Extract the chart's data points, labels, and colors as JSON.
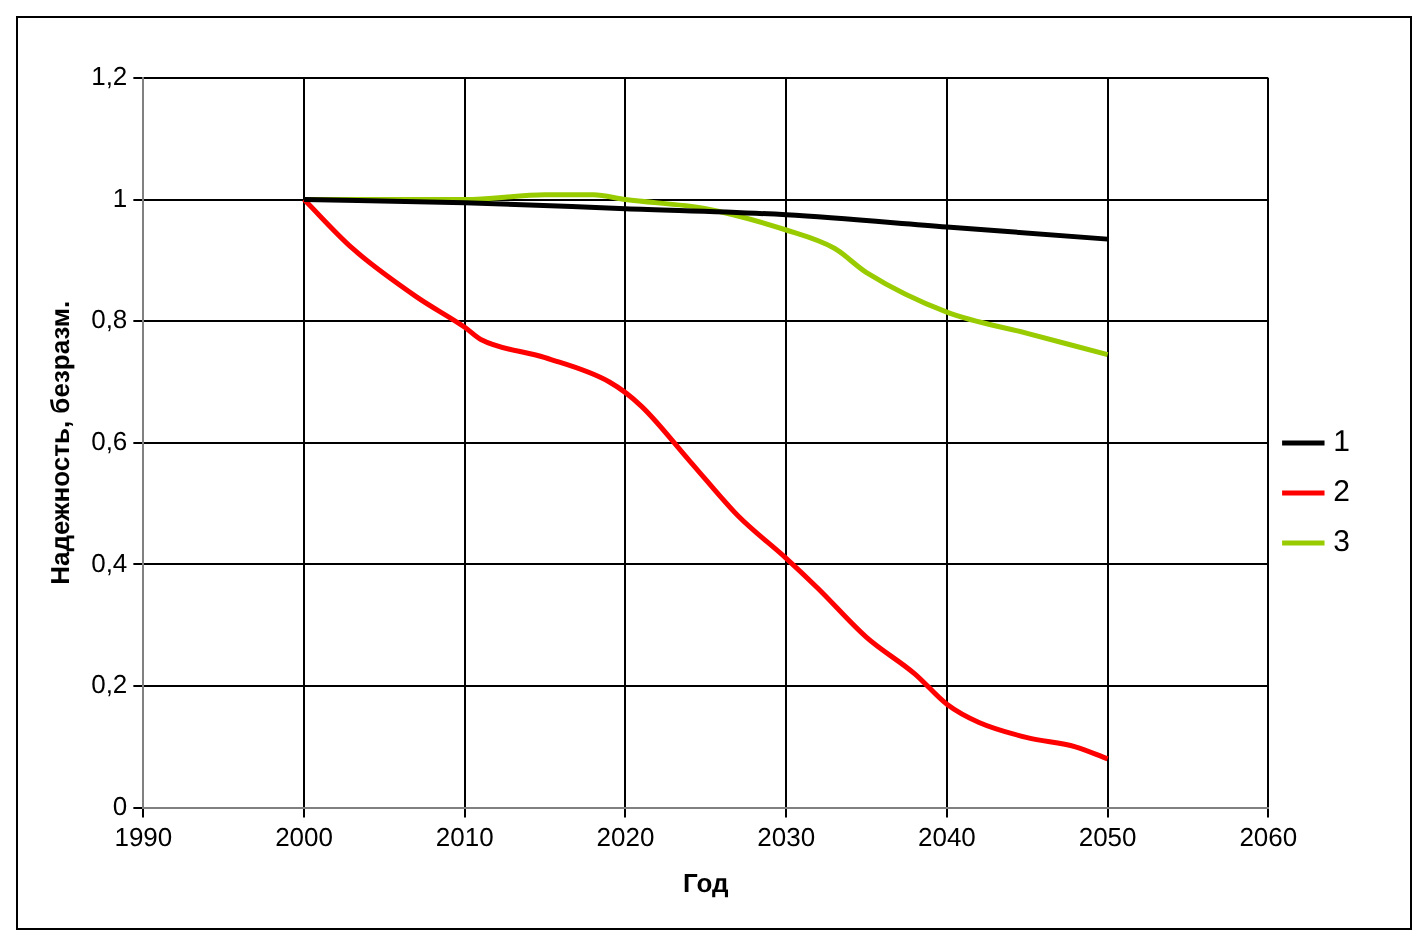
{
  "chart_data": {
    "type": "line",
    "xlabel": "Год",
    "ylabel": "Надежность, безразм.",
    "xlim": [
      1990,
      2060
    ],
    "xticks": [
      1990,
      2000,
      2010,
      2020,
      2030,
      2040,
      2050,
      2060
    ],
    "ylim": [
      0,
      1.2
    ],
    "yticks": [
      0,
      {
        "value": 0.2,
        "label": "0,2"
      },
      {
        "value": 0.4,
        "label": "0,4"
      },
      {
        "value": 0.6,
        "label": "0,6"
      },
      {
        "value": 0.8,
        "label": "0,8"
      },
      1,
      {
        "value": 1.2,
        "label": "1,2"
      }
    ],
    "grid": true,
    "legend": "right",
    "marker": "none",
    "line_style": "solid",
    "series": [
      {
        "name": "1",
        "color": "#000000",
        "x": [
          2000,
          2010,
          2020,
          2030,
          2040,
          2050
        ],
        "values": [
          1,
          0.995,
          0.985,
          0.975,
          0.955,
          0.935
        ]
      },
      {
        "name": "2",
        "color": "#ff0000",
        "x": [
          2000,
          2003,
          2007,
          2010,
          2011,
          2015,
          2019,
          2021,
          2024,
          2027,
          2030,
          2032,
          2035,
          2038,
          2040,
          2042,
          2045,
          2048,
          2050
        ],
        "values": [
          1,
          0.92,
          0.84,
          0.79,
          0.77,
          0.74,
          0.7,
          0.66,
          0.57,
          0.48,
          0.41,
          0.36,
          0.28,
          0.22,
          0.17,
          0.14,
          0.115,
          0.1,
          0.08
        ]
      },
      {
        "name": "3",
        "color": "#99cc00",
        "x": [
          2000,
          2010,
          2015,
          2018,
          2020,
          2025,
          2030,
          2033,
          2035,
          2040,
          2045,
          2050
        ],
        "values": [
          1,
          1,
          1.008,
          1.008,
          1,
          0.985,
          0.95,
          0.92,
          0.88,
          0.815,
          0.78,
          0.745
        ]
      }
    ]
  }
}
